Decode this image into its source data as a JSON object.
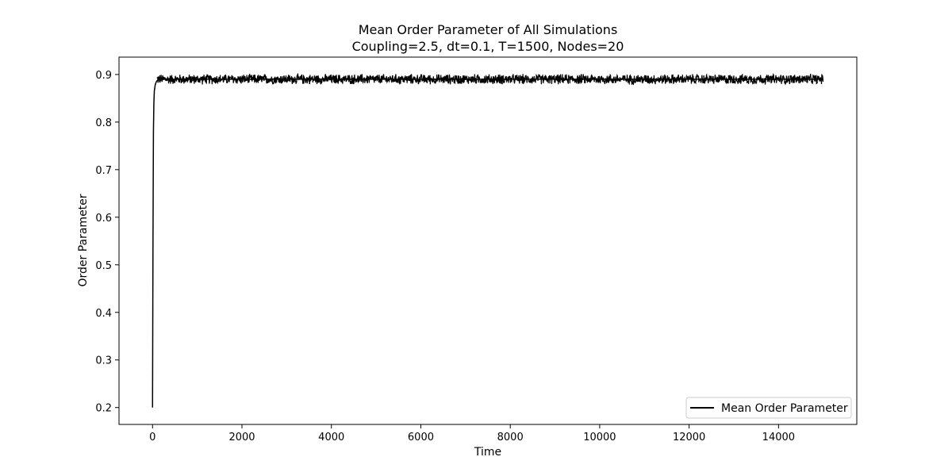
{
  "chart_data": {
    "type": "line",
    "title": "Mean Order Parameter of All Simulations",
    "subtitle": "Coupling=2.5, dt=0.1, T=1500, Nodes=20",
    "xlabel": "Time",
    "ylabel": "Order Parameter",
    "xlim": [
      -750,
      15750
    ],
    "ylim": [
      0.1645,
      0.9365
    ],
    "xticks": [
      0,
      2000,
      4000,
      6000,
      8000,
      10000,
      12000,
      14000
    ],
    "xtick_labels": [
      "0",
      "2000",
      "4000",
      "6000",
      "8000",
      "10000",
      "12000",
      "14000"
    ],
    "yticks": [
      0.2,
      0.3,
      0.4,
      0.5,
      0.6,
      0.7,
      0.8,
      0.9
    ],
    "ytick_labels": [
      "0.2",
      "0.3",
      "0.4",
      "0.5",
      "0.6",
      "0.7",
      "0.8",
      "0.9"
    ],
    "grid": false,
    "legend_position": "lower-right",
    "series": [
      {
        "name": "Mean Order Parameter",
        "color": "#000000",
        "x": [
          0,
          10,
          20,
          30,
          40,
          60,
          80,
          100,
          150,
          200,
          300,
          500,
          1000,
          2000,
          4000,
          6000,
          8000,
          10000,
          12000,
          14000,
          15000
        ],
        "y": [
          0.2,
          0.55,
          0.78,
          0.84,
          0.865,
          0.878,
          0.884,
          0.887,
          0.889,
          0.89,
          0.89,
          0.89,
          0.89,
          0.89,
          0.89,
          0.89,
          0.89,
          0.89,
          0.89,
          0.89,
          0.89
        ],
        "steady_band": [
          0.878,
          0.902
        ]
      }
    ]
  }
}
